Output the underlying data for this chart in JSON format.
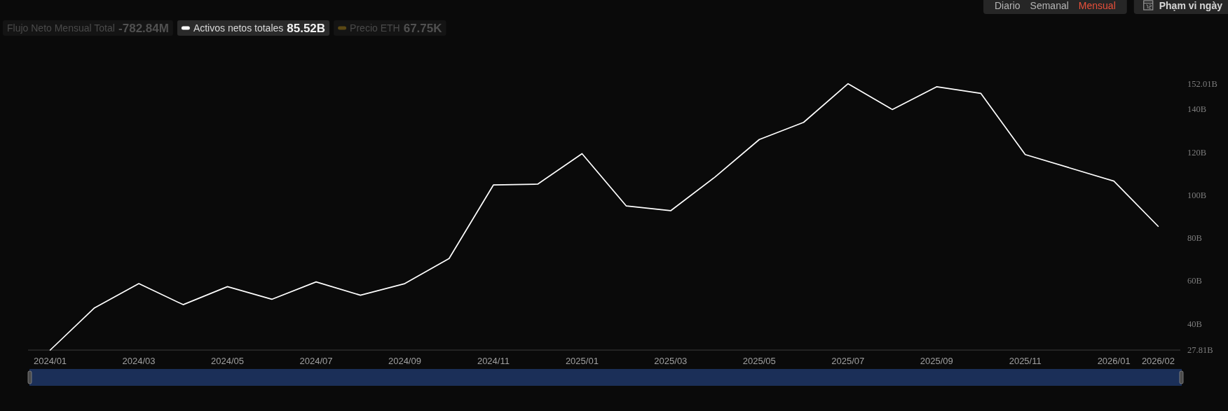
{
  "chart_data": {
    "type": "line",
    "categories": [
      "2024/01",
      null,
      "2024/03",
      null,
      "2024/05",
      null,
      "2024/07",
      null,
      "2024/09",
      null,
      "2024/11",
      null,
      "2025/01",
      null,
      "2025/03",
      null,
      "2025/05",
      null,
      "2025/07",
      null,
      "2025/09",
      null,
      "2025/11",
      null,
      "2026/01",
      "2026/02"
    ],
    "series": [
      {
        "name": "Activos netos totales",
        "color": "#ffffff",
        "values": [
          27.81,
          47.5,
          58.8,
          49.0,
          57.4,
          51.5,
          59.6,
          53.4,
          58.8,
          70.5,
          104.8,
          105.2,
          119.4,
          95.0,
          92.8,
          108.5,
          126.0,
          134.0,
          152.01,
          140.0,
          150.6,
          147.5,
          119.0,
          112.8,
          106.6,
          85.52
        ]
      }
    ],
    "ylim": [
      27.81,
      152.01
    ],
    "yticks": [
      {
        "value": 27.81,
        "label": "27.81B"
      },
      {
        "value": 40,
        "label": "40B"
      },
      {
        "value": 60,
        "label": "60B"
      },
      {
        "value": 80,
        "label": "80B"
      },
      {
        "value": 100,
        "label": "100B"
      },
      {
        "value": 120,
        "label": "120B"
      },
      {
        "value": 140,
        "label": "140B"
      },
      {
        "value": 152.01,
        "label": "152.01B"
      }
    ],
    "legend": "top left",
    "annotations": [
      "Flujo Neto Mensual Total -782.84M",
      "85.52B",
      "Precio ETH 67.75K",
      "Diario",
      "Semanal",
      "Mensual",
      "Phạm vi ngày"
    ]
  }
}
